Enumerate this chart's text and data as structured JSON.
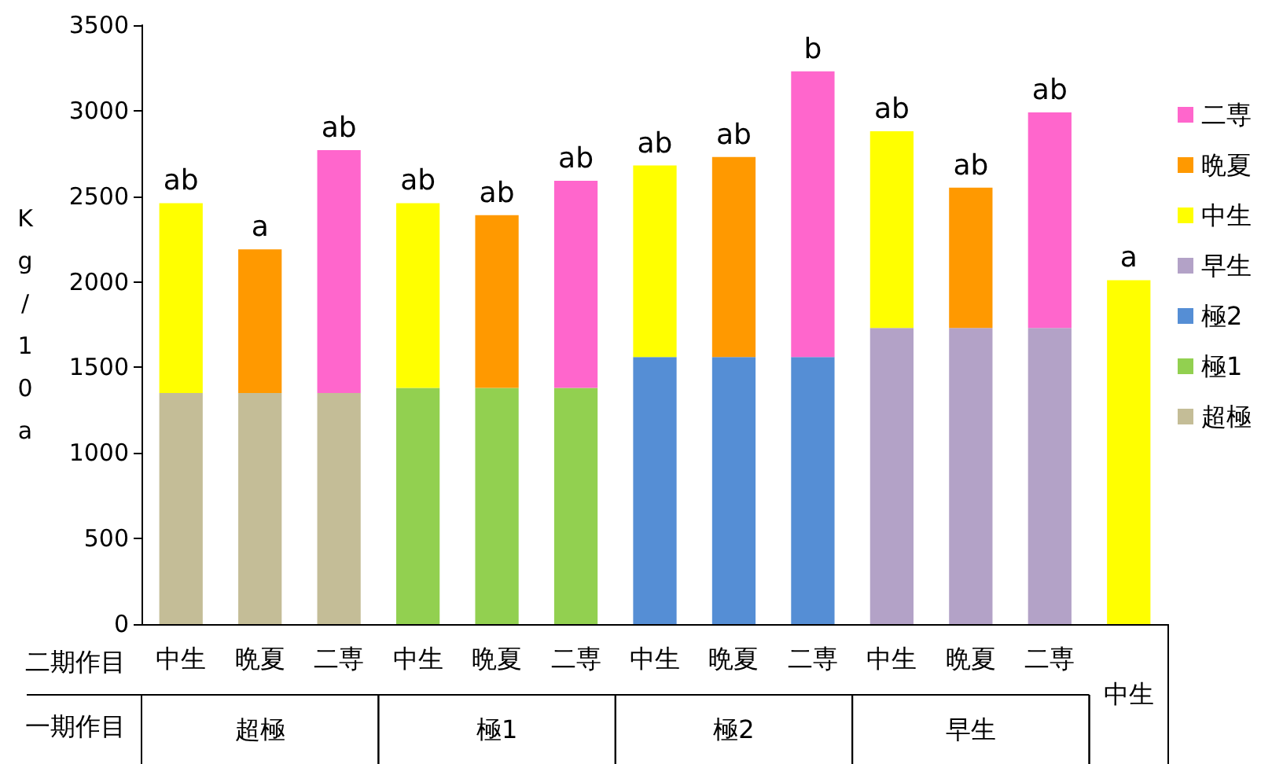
{
  "chart_data": {
    "type": "bar",
    "stacked": true,
    "ylabel": "Kg/10a",
    "categories": [
      "中生",
      "晩夏",
      "二専",
      "中生",
      "晩夏",
      "二専",
      "中生",
      "晩夏",
      "二専",
      "中生",
      "晩夏",
      "二専",
      null
    ],
    "annotations": [
      "二期作目",
      "一期作目",
      "超極",
      "極1",
      "極2",
      "早生",
      "中生"
    ],
    "series": [
      {
        "name": "超極",
        "color": "#c4bd97",
        "values": [
          1350,
          1350,
          1350,
          null,
          null,
          null,
          null,
          null,
          null,
          null,
          null,
          null,
          null
        ]
      },
      {
        "name": "極1",
        "color": "#92d050",
        "values": [
          null,
          null,
          null,
          1380,
          1380,
          1380,
          null,
          null,
          null,
          null,
          null,
          null,
          null
        ]
      },
      {
        "name": "極2",
        "color": "#558ed5",
        "values": [
          null,
          null,
          null,
          null,
          null,
          null,
          1560,
          1560,
          1560,
          null,
          null,
          null,
          null
        ]
      },
      {
        "name": "早生",
        "color": "#b3a2c7",
        "values": [
          null,
          null,
          null,
          null,
          null,
          null,
          null,
          null,
          null,
          1730,
          1730,
          1730,
          null
        ]
      },
      {
        "name": "中生",
        "color": "#ffff00",
        "values": [
          1110,
          null,
          null,
          1080,
          null,
          null,
          1120,
          null,
          null,
          1150,
          null,
          null,
          2010
        ],
        "value_labels": [
          "ab",
          null,
          null,
          "ab",
          null,
          null,
          "ab",
          null,
          null,
          "ab",
          null,
          null,
          "a"
        ]
      },
      {
        "name": "晩夏",
        "color": "#ff9900",
        "values": [
          null,
          840,
          null,
          null,
          1010,
          null,
          null,
          1170,
          null,
          null,
          820,
          null,
          null
        ],
        "value_labels": [
          null,
          "a",
          null,
          null,
          "ab",
          null,
          null,
          "ab",
          null,
          null,
          "ab",
          null,
          null
        ]
      },
      {
        "name": "二専",
        "color": "#ff66cc",
        "values": [
          null,
          null,
          1420,
          null,
          null,
          1210,
          null,
          null,
          1670,
          null,
          null,
          1260,
          null
        ],
        "value_labels": [
          null,
          null,
          "ab",
          null,
          null,
          "ab",
          null,
          null,
          "b",
          null,
          null,
          "ab",
          null
        ]
      }
    ],
    "ylim": [
      0,
      3500
    ],
    "yticks": [
      0,
      500,
      1000,
      1500,
      2000,
      2500,
      3000,
      3500
    ],
    "grid": false,
    "legend": "right"
  }
}
